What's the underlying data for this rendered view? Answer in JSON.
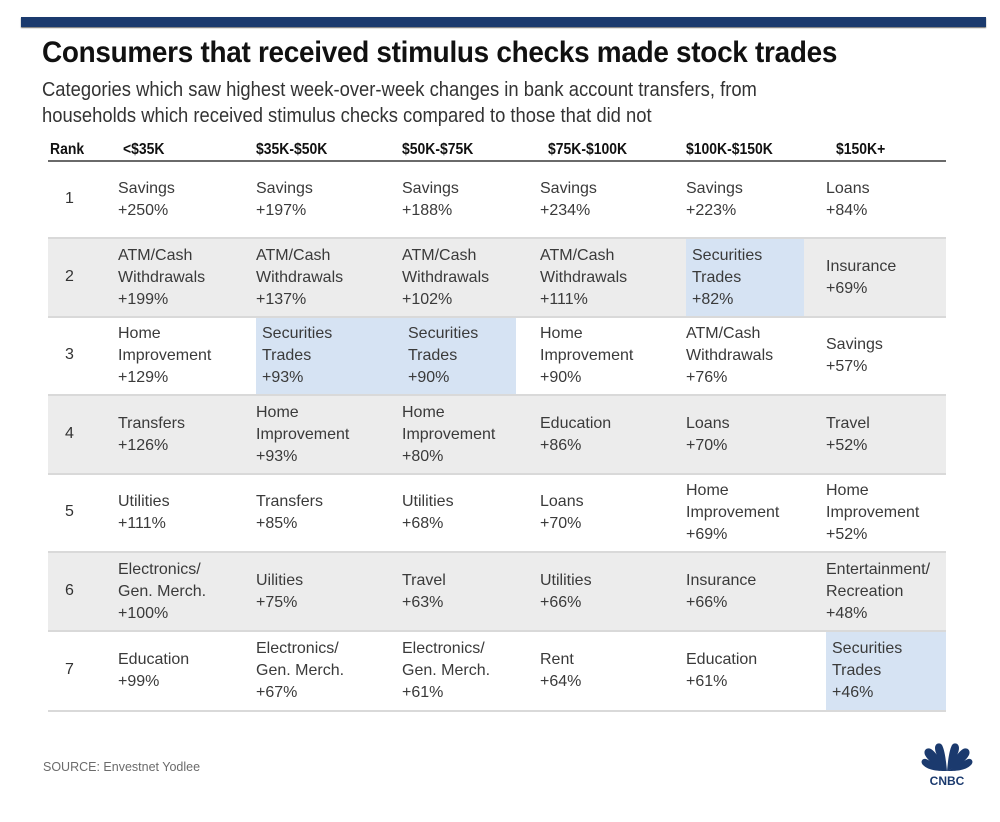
{
  "header": {
    "title": "Consumers that received stimulus checks made stock trades",
    "subtitle": "Categories which saw highest week-over-week changes in bank account transfers, from\nhouseholds which received stimulus checks compared to those that did not"
  },
  "colors": {
    "top_bar": "#1b3a6e",
    "highlight": "#d6e3f3",
    "row_shade": "#ececec",
    "logo": "#1b3a6e"
  },
  "footer": {
    "source": "SOURCE: Envestnet Yodlee",
    "logo_text": "CNBC",
    "logo_icon": "peacock-icon"
  },
  "chart_data": {
    "type": "table",
    "title": "Consumers that received stimulus checks made stock trades",
    "subtitle": "Categories which saw highest week-over-week changes in bank account transfers, from households which received stimulus checks compared to those that did not",
    "columns": [
      "Rank",
      "<$35K",
      "$35K-$50K",
      "$50K-$75K",
      "$75K-$100K",
      "$100K-$150K",
      "$150K+"
    ],
    "highlight_category": "Securities Trades",
    "rows": [
      {
        "rank": "1",
        "cells": [
          {
            "category": "Savings",
            "change": "+250%",
            "highlight": false
          },
          {
            "category": "Savings",
            "change": "+197%",
            "highlight": false
          },
          {
            "category": "Savings",
            "change": "+188%",
            "highlight": false
          },
          {
            "category": "Savings",
            "change": "+234%",
            "highlight": false
          },
          {
            "category": "Savings",
            "change": "+223%",
            "highlight": false
          },
          {
            "category": "Loans",
            "change": "+84%",
            "highlight": false
          }
        ]
      },
      {
        "rank": "2",
        "cells": [
          {
            "category": "ATM/Cash\nWithdrawals",
            "change": "+199%",
            "highlight": false
          },
          {
            "category": "ATM/Cash\nWithdrawals",
            "change": "+137%",
            "highlight": false
          },
          {
            "category": "ATM/Cash\nWithdrawals",
            "change": "+102%",
            "highlight": false
          },
          {
            "category": "ATM/Cash\nWithdrawals",
            "change": "+111%",
            "highlight": false
          },
          {
            "category": "Securities\nTrades",
            "change": "+82%",
            "highlight": true
          },
          {
            "category": "Insurance",
            "change": "+69%",
            "highlight": false
          }
        ]
      },
      {
        "rank": "3",
        "cells": [
          {
            "category": "Home\nImprovement",
            "change": "+129%",
            "highlight": false
          },
          {
            "category": "Securities\nTrades",
            "change": "+93%",
            "highlight": true
          },
          {
            "category": "Securities\nTrades",
            "change": "+90%",
            "highlight": true
          },
          {
            "category": "Home\nImprovement",
            "change": "+90%",
            "highlight": false
          },
          {
            "category": "ATM/Cash\nWithdrawals",
            "change": "+76%",
            "highlight": false
          },
          {
            "category": "Savings",
            "change": "+57%",
            "highlight": false
          }
        ]
      },
      {
        "rank": "4",
        "cells": [
          {
            "category": "Transfers",
            "change": "+126%",
            "highlight": false
          },
          {
            "category": "Home\nImprovement",
            "change": "+93%",
            "highlight": false
          },
          {
            "category": "Home\nImprovement",
            "change": "+80%",
            "highlight": false
          },
          {
            "category": "Education",
            "change": "+86%",
            "highlight": false
          },
          {
            "category": "Loans",
            "change": "+70%",
            "highlight": false
          },
          {
            "category": "Travel",
            "change": "+52%",
            "highlight": false
          }
        ]
      },
      {
        "rank": "5",
        "cells": [
          {
            "category": "Utilities",
            "change": "+111%",
            "highlight": false
          },
          {
            "category": "Transfers",
            "change": "+85%",
            "highlight": false
          },
          {
            "category": "Utilities",
            "change": "+68%",
            "highlight": false
          },
          {
            "category": "Loans",
            "change": "+70%",
            "highlight": false
          },
          {
            "category": "Home\nImprovement",
            "change": "+69%",
            "highlight": false
          },
          {
            "category": "Home\nImprovement",
            "change": "+52%",
            "highlight": false
          }
        ]
      },
      {
        "rank": "6",
        "cells": [
          {
            "category": "Electronics/\nGen. Merch.",
            "change": "+100%",
            "highlight": false
          },
          {
            "category": "Uilities",
            "change": "+75%",
            "highlight": false
          },
          {
            "category": "Travel",
            "change": "+63%",
            "highlight": false
          },
          {
            "category": "Utilities",
            "change": "+66%",
            "highlight": false
          },
          {
            "category": "Insurance",
            "change": "+66%",
            "highlight": false
          },
          {
            "category": "Entertainment/\nRecreation",
            "change": "+48%",
            "highlight": false
          }
        ]
      },
      {
        "rank": "7",
        "cells": [
          {
            "category": "Education",
            "change": "+99%",
            "highlight": false
          },
          {
            "category": "Electronics/\nGen. Merch.",
            "change": "+67%",
            "highlight": false
          },
          {
            "category": "Electronics/\nGen. Merch.",
            "change": "+61%",
            "highlight": false
          },
          {
            "category": "Rent",
            "change": "+64%",
            "highlight": false
          },
          {
            "category": "Education",
            "change": "+61%",
            "highlight": false
          },
          {
            "category": "Securities\nTrades",
            "change": "+46%",
            "highlight": true
          }
        ]
      }
    ]
  }
}
